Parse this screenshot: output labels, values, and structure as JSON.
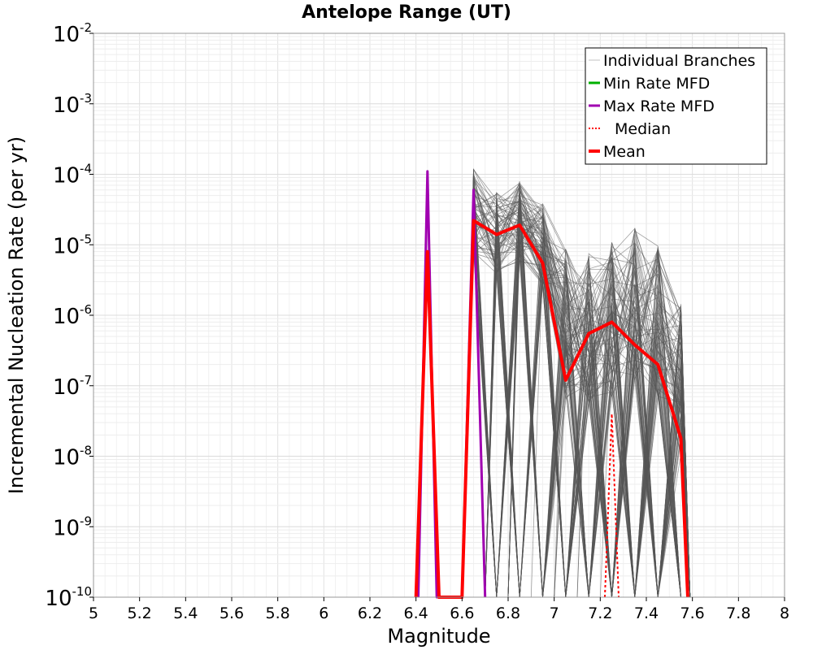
{
  "chart_data": {
    "type": "line",
    "title": "Antelope Range (UT)",
    "xlabel": "Magnitude",
    "ylabel": "Incremental Nucleation Rate (per yr)",
    "xlim": [
      5,
      8
    ],
    "ylim": [
      1e-10,
      0.01
    ],
    "yscale": "log",
    "grid": true,
    "legend_position": "top-right",
    "x_ticks": [
      "5",
      "5.2",
      "5.4",
      "5.6",
      "5.8",
      "6",
      "6.2",
      "6.4",
      "6.6",
      "6.8",
      "7",
      "7.2",
      "7.4",
      "7.6",
      "7.8",
      "8"
    ],
    "y_ticks": [
      {
        "base": "10",
        "exp": "-2",
        "value": 0.01
      },
      {
        "base": "10",
        "exp": "-3",
        "value": 0.001
      },
      {
        "base": "10",
        "exp": "-4",
        "value": 0.0001
      },
      {
        "base": "10",
        "exp": "-5",
        "value": 1e-05
      },
      {
        "base": "10",
        "exp": "-6",
        "value": 1e-06
      },
      {
        "base": "10",
        "exp": "-7",
        "value": 1e-07
      },
      {
        "base": "10",
        "exp": "-8",
        "value": 1e-08
      },
      {
        "base": "10",
        "exp": "-9",
        "value": 1e-09
      },
      {
        "base": "10",
        "exp": "-10",
        "value": 1e-10
      }
    ],
    "legend": [
      {
        "label": "Individual Branches",
        "color": "#c0c0c0",
        "style": "solid-thin"
      },
      {
        "label": "Min Rate MFD",
        "color": "#00b000",
        "style": "solid"
      },
      {
        "label": "Max Rate MFD",
        "color": "#a000b0",
        "style": "solid"
      },
      {
        "label": "Median",
        "color": "#ff0000",
        "style": "dotted"
      },
      {
        "label": "Mean",
        "color": "#ff0000",
        "style": "solid-thick"
      }
    ],
    "branch_color": "#555555",
    "branch_peaks": [
      {
        "x": 6.65,
        "y": 0.00012
      },
      {
        "x": 6.75,
        "y": 5.5e-05
      },
      {
        "x": 6.85,
        "y": 9e-05
      },
      {
        "x": 6.95,
        "y": 4e-05
      },
      {
        "x": 7.05,
        "y": 9e-06
      },
      {
        "x": 7.15,
        "y": 8e-06
      },
      {
        "x": 7.25,
        "y": 1.1e-05
      },
      {
        "x": 7.35,
        "y": 1.8e-05
      },
      {
        "x": 7.45,
        "y": 1e-05
      },
      {
        "x": 7.55,
        "y": 1.5e-06
      }
    ],
    "series": [
      {
        "name": "Max Rate MFD",
        "color": "#a000b0",
        "width": 3,
        "points": [
          [
            6.41,
            1e-10
          ],
          [
            6.45,
            0.00011
          ],
          [
            6.49,
            1e-10
          ],
          [
            6.6,
            1e-10
          ],
          [
            6.65,
            6e-05
          ],
          [
            6.7,
            1e-10
          ]
        ]
      },
      {
        "name": "Median",
        "color": "#ff0000",
        "width": 2,
        "dash": "3,3",
        "points": [
          [
            7.22,
            1e-10
          ],
          [
            7.25,
            4e-08
          ],
          [
            7.28,
            1e-10
          ]
        ]
      },
      {
        "name": "Mean",
        "color": "#ff0000",
        "width": 4,
        "points": [
          [
            6.4,
            1e-10
          ],
          [
            6.45,
            8e-06
          ],
          [
            6.5,
            1e-10
          ],
          [
            6.6,
            1e-10
          ],
          [
            6.65,
            2.2e-05
          ],
          [
            6.75,
            1.4e-05
          ],
          [
            6.85,
            1.9e-05
          ],
          [
            6.95,
            5.5e-06
          ],
          [
            7.05,
            1.2e-07
          ],
          [
            7.15,
            5.5e-07
          ],
          [
            7.25,
            8e-07
          ],
          [
            7.35,
            3.8e-07
          ],
          [
            7.45,
            2e-07
          ],
          [
            7.55,
            1.8e-08
          ],
          [
            7.58,
            1e-10
          ]
        ]
      }
    ]
  }
}
